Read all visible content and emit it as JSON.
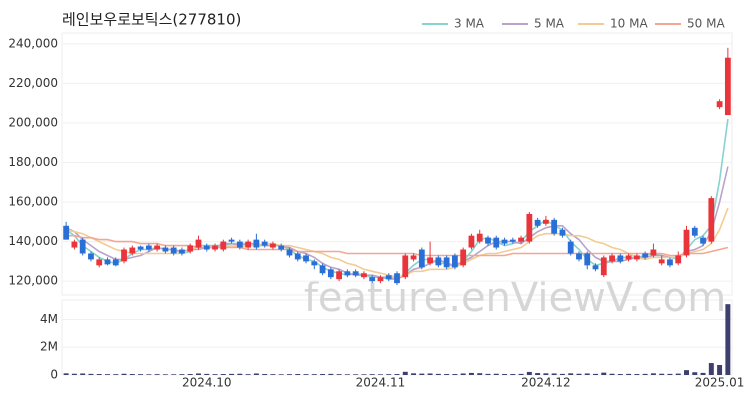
{
  "chart_data": [
    {
      "type": "candlestick",
      "title": "레인보우로보틱스(277810)",
      "watermark": "feature.enViewV.com",
      "up_color": "#e8343a",
      "down_color": "#2a6fd6",
      "legend": "top-right",
      "grid": true,
      "ylim": [
        113000,
        245500
      ],
      "yticks": [
        {
          "value": 120000,
          "label": "120,000"
        },
        {
          "value": 140000,
          "label": "140,000"
        },
        {
          "value": 160000,
          "label": "160,000"
        },
        {
          "value": 180000,
          "label": "180,000"
        },
        {
          "value": 200000,
          "label": "200,000"
        },
        {
          "value": 220000,
          "label": "220,000"
        },
        {
          "value": 240000,
          "label": "240,000"
        }
      ],
      "open": [
        148000,
        137000,
        141000,
        134000,
        128000,
        131000,
        131000,
        130000,
        134000,
        137500,
        138000,
        136000,
        137000,
        137000,
        136000,
        135000,
        137000,
        138000,
        136000,
        136000,
        141000,
        140000,
        137000,
        141000,
        140000,
        137000,
        138000,
        136000,
        134000,
        133000,
        130000,
        128000,
        126000,
        121000,
        125000,
        125000,
        122000,
        122000,
        120000,
        123000,
        124000,
        122000,
        131000,
        136000,
        129000,
        132000,
        132000,
        133000,
        128000,
        137000,
        140000,
        142000,
        142000,
        141000,
        141000,
        140000,
        140000,
        151000,
        149000,
        151000,
        146000,
        140000,
        134000,
        134000,
        128000,
        123000,
        130000,
        133000,
        131000,
        131000,
        134000,
        133000,
        129000,
        131000,
        129000,
        133000,
        147000,
        142000,
        140000,
        208000,
        204000
      ],
      "high": [
        150000,
        141000,
        142000,
        135000,
        132000,
        132000,
        132000,
        137000,
        138000,
        138000,
        139000,
        139000,
        138000,
        138000,
        137000,
        139000,
        143000,
        139000,
        139000,
        141000,
        142000,
        141000,
        141000,
        144000,
        141000,
        140000,
        139000,
        137000,
        135000,
        134000,
        131000,
        129000,
        127000,
        126000,
        126000,
        126000,
        125000,
        123000,
        123000,
        124000,
        125000,
        134000,
        134000,
        137000,
        140000,
        133000,
        133000,
        134000,
        137000,
        144000,
        146000,
        143000,
        143000,
        142000,
        142000,
        143000,
        155000,
        152000,
        153000,
        152000,
        147000,
        141000,
        135000,
        135000,
        129000,
        133000,
        134000,
        134000,
        134000,
        134000,
        135000,
        139000,
        133000,
        132000,
        135000,
        148000,
        148000,
        143000,
        163000,
        212000,
        238000
      ],
      "low": [
        141000,
        136000,
        133000,
        130000,
        127000,
        128000,
        127500,
        129000,
        133000,
        135000,
        135000,
        135000,
        134000,
        133000,
        133000,
        134000,
        136000,
        135000,
        135000,
        135000,
        139000,
        136000,
        136000,
        136000,
        137000,
        136000,
        135000,
        132000,
        130000,
        129000,
        126000,
        123000,
        121000,
        120000,
        122000,
        122000,
        121000,
        119000,
        119000,
        120000,
        118000,
        121000,
        130000,
        126000,
        128000,
        127000,
        126000,
        126000,
        127000,
        136000,
        139000,
        138000,
        136000,
        138000,
        139000,
        139000,
        139000,
        147000,
        148000,
        143000,
        142000,
        133000,
        130000,
        126000,
        125000,
        122000,
        129000,
        129000,
        130000,
        130000,
        131000,
        132000,
        128000,
        127000,
        128000,
        132000,
        142000,
        138000,
        139000,
        207000,
        204000
      ],
      "close": [
        141000,
        140000,
        134000,
        131000,
        131000,
        128500,
        128000,
        136000,
        137000,
        136000,
        136000,
        138000,
        135000,
        134000,
        134000,
        138000,
        141000,
        136000,
        138000,
        140000,
        140000,
        137000,
        140000,
        137000,
        138000,
        139000,
        136000,
        133000,
        131000,
        130000,
        128000,
        124000,
        122000,
        125000,
        123000,
        123000,
        124000,
        120000,
        122000,
        121000,
        119000,
        133000,
        133000,
        127000,
        132000,
        128000,
        127000,
        127000,
        136000,
        143000,
        144000,
        139000,
        137000,
        139000,
        140000,
        142000,
        154000,
        148000,
        151000,
        144000,
        143000,
        134000,
        131000,
        128000,
        126000,
        132000,
        133000,
        130000,
        133000,
        133000,
        132000,
        136000,
        131000,
        128000,
        133000,
        146000,
        143000,
        139000,
        162000,
        211000,
        233000
      ],
      "series": [
        {
          "name": "3 MA",
          "color": "#86d3cf",
          "values": [
            146000,
            143000,
            138000,
            135000,
            132000,
            130000,
            129000,
            131000,
            134000,
            136000,
            136000,
            137000,
            136000,
            136000,
            134000,
            135000,
            138000,
            138000,
            138000,
            138000,
            139000,
            139000,
            139000,
            138000,
            138000,
            138000,
            138000,
            136000,
            133000,
            131000,
            130000,
            127000,
            125000,
            124000,
            123000,
            124000,
            123000,
            122000,
            122000,
            121000,
            121000,
            124000,
            128000,
            131000,
            131000,
            129000,
            129000,
            127000,
            130000,
            135000,
            141000,
            142000,
            140000,
            138000,
            139000,
            140000,
            145000,
            148000,
            151000,
            148000,
            146000,
            140000,
            136000,
            131000,
            128000,
            129000,
            130000,
            132000,
            132000,
            132000,
            133000,
            134000,
            133000,
            132000,
            131000,
            136000,
            141000,
            143000,
            148000,
            171000,
            202000
          ]
        },
        {
          "name": "5 MA",
          "color": "#b9a3cc",
          "values": [
            147000,
            145000,
            141000,
            138000,
            135000,
            133000,
            131000,
            131000,
            132000,
            133000,
            135000,
            137000,
            136000,
            136000,
            135000,
            136000,
            136000,
            137000,
            137000,
            139000,
            139000,
            138000,
            139000,
            139000,
            138000,
            138000,
            138000,
            137000,
            135000,
            134000,
            132000,
            129000,
            127000,
            126000,
            124000,
            123000,
            123000,
            123000,
            122000,
            122000,
            121000,
            123000,
            126000,
            127000,
            129000,
            131000,
            129000,
            128000,
            130000,
            132000,
            135000,
            138000,
            140000,
            140000,
            140000,
            139000,
            142000,
            145000,
            147000,
            148000,
            148000,
            144000,
            141000,
            136000,
            132000,
            130000,
            130000,
            130000,
            131000,
            132000,
            132000,
            133000,
            133000,
            132000,
            132000,
            135000,
            136000,
            138000,
            145000,
            160000,
            178000
          ]
        },
        {
          "name": "10 MA",
          "color": "#f3cb93",
          "values": [
            146000,
            145000,
            144000,
            142000,
            140000,
            138000,
            136000,
            135000,
            134000,
            134000,
            134000,
            134000,
            134000,
            134000,
            134000,
            136000,
            137000,
            137000,
            137000,
            137000,
            138000,
            137000,
            138000,
            138000,
            139000,
            139000,
            138000,
            138000,
            137000,
            136000,
            135000,
            134000,
            132000,
            131000,
            129000,
            128000,
            126000,
            125000,
            124000,
            123000,
            122000,
            123000,
            125000,
            125000,
            126000,
            126000,
            126000,
            127000,
            129000,
            131000,
            133000,
            134000,
            134000,
            135000,
            136000,
            137000,
            140000,
            143000,
            144000,
            144000,
            144000,
            143000,
            143000,
            142000,
            140000,
            139000,
            137000,
            136000,
            134000,
            132000,
            131000,
            132000,
            132000,
            132000,
            132000,
            134000,
            135000,
            136000,
            139000,
            146000,
            157000
          ]
        },
        {
          "name": "50 MA",
          "color": "#f3a691",
          "values": [
            143000,
            143000,
            142000,
            142000,
            141000,
            141000,
            140000,
            140000,
            140000,
            139000,
            139000,
            139000,
            138000,
            138000,
            138000,
            138000,
            137000,
            137000,
            137000,
            137000,
            137000,
            137000,
            136000,
            136000,
            136000,
            136000,
            136000,
            136000,
            135000,
            135000,
            135000,
            135000,
            135000,
            135000,
            134000,
            134000,
            134000,
            134000,
            134000,
            134000,
            134000,
            134000,
            134000,
            133000,
            133000,
            133000,
            133000,
            133000,
            133000,
            133000,
            133000,
            133000,
            133000,
            133000,
            134000,
            134000,
            134000,
            134000,
            134000,
            134000,
            134000,
            134000,
            134000,
            134000,
            134000,
            134000,
            134000,
            134000,
            134000,
            134000,
            134000,
            134000,
            134000,
            133000,
            133000,
            134000,
            134000,
            134000,
            135000,
            136000,
            137000
          ]
        }
      ]
    },
    {
      "type": "bar",
      "color": "#3d3f6e",
      "ylim": [
        0,
        5400000
      ],
      "yticks": [
        0,
        {
          "value": 2000000,
          "label": "2M"
        },
        {
          "value": 4000000,
          "label": "4M"
        }
      ],
      "categories": [
        null,
        null,
        null,
        null,
        null,
        null,
        null,
        null,
        null,
        null,
        null,
        null,
        null,
        null,
        null,
        null,
        null,
        "2024.10",
        null,
        null,
        null,
        null,
        null,
        null,
        null,
        null,
        null,
        null,
        null,
        null,
        null,
        null,
        null,
        null,
        null,
        null,
        null,
        null,
        "2024.11",
        null,
        null,
        null,
        null,
        null,
        null,
        null,
        null,
        null,
        null,
        null,
        null,
        null,
        null,
        null,
        null,
        null,
        null,
        null,
        "2024.12",
        null,
        null,
        null,
        null,
        null,
        null,
        null,
        null,
        null,
        null,
        null,
        null,
        null,
        null,
        null,
        null,
        null,
        null,
        null,
        null,
        "2025.01",
        null
      ],
      "values": [
        120000,
        90000,
        110000,
        80000,
        70000,
        60000,
        60000,
        90000,
        70000,
        60000,
        50000,
        60000,
        50000,
        50000,
        60000,
        70000,
        110000,
        80000,
        60000,
        70000,
        80000,
        90000,
        60000,
        110000,
        70000,
        60000,
        50000,
        60000,
        70000,
        60000,
        60000,
        70000,
        80000,
        60000,
        50000,
        50000,
        50000,
        60000,
        50000,
        60000,
        70000,
        230000,
        120000,
        100000,
        110000,
        80000,
        70000,
        70000,
        110000,
        150000,
        130000,
        80000,
        90000,
        70000,
        70000,
        80000,
        220000,
        140000,
        120000,
        110000,
        80000,
        120000,
        90000,
        110000,
        80000,
        170000,
        90000,
        70000,
        80000,
        70000,
        80000,
        120000,
        90000,
        80000,
        100000,
        350000,
        200000,
        150000,
        860000,
        720000,
        5100000
      ]
    }
  ]
}
